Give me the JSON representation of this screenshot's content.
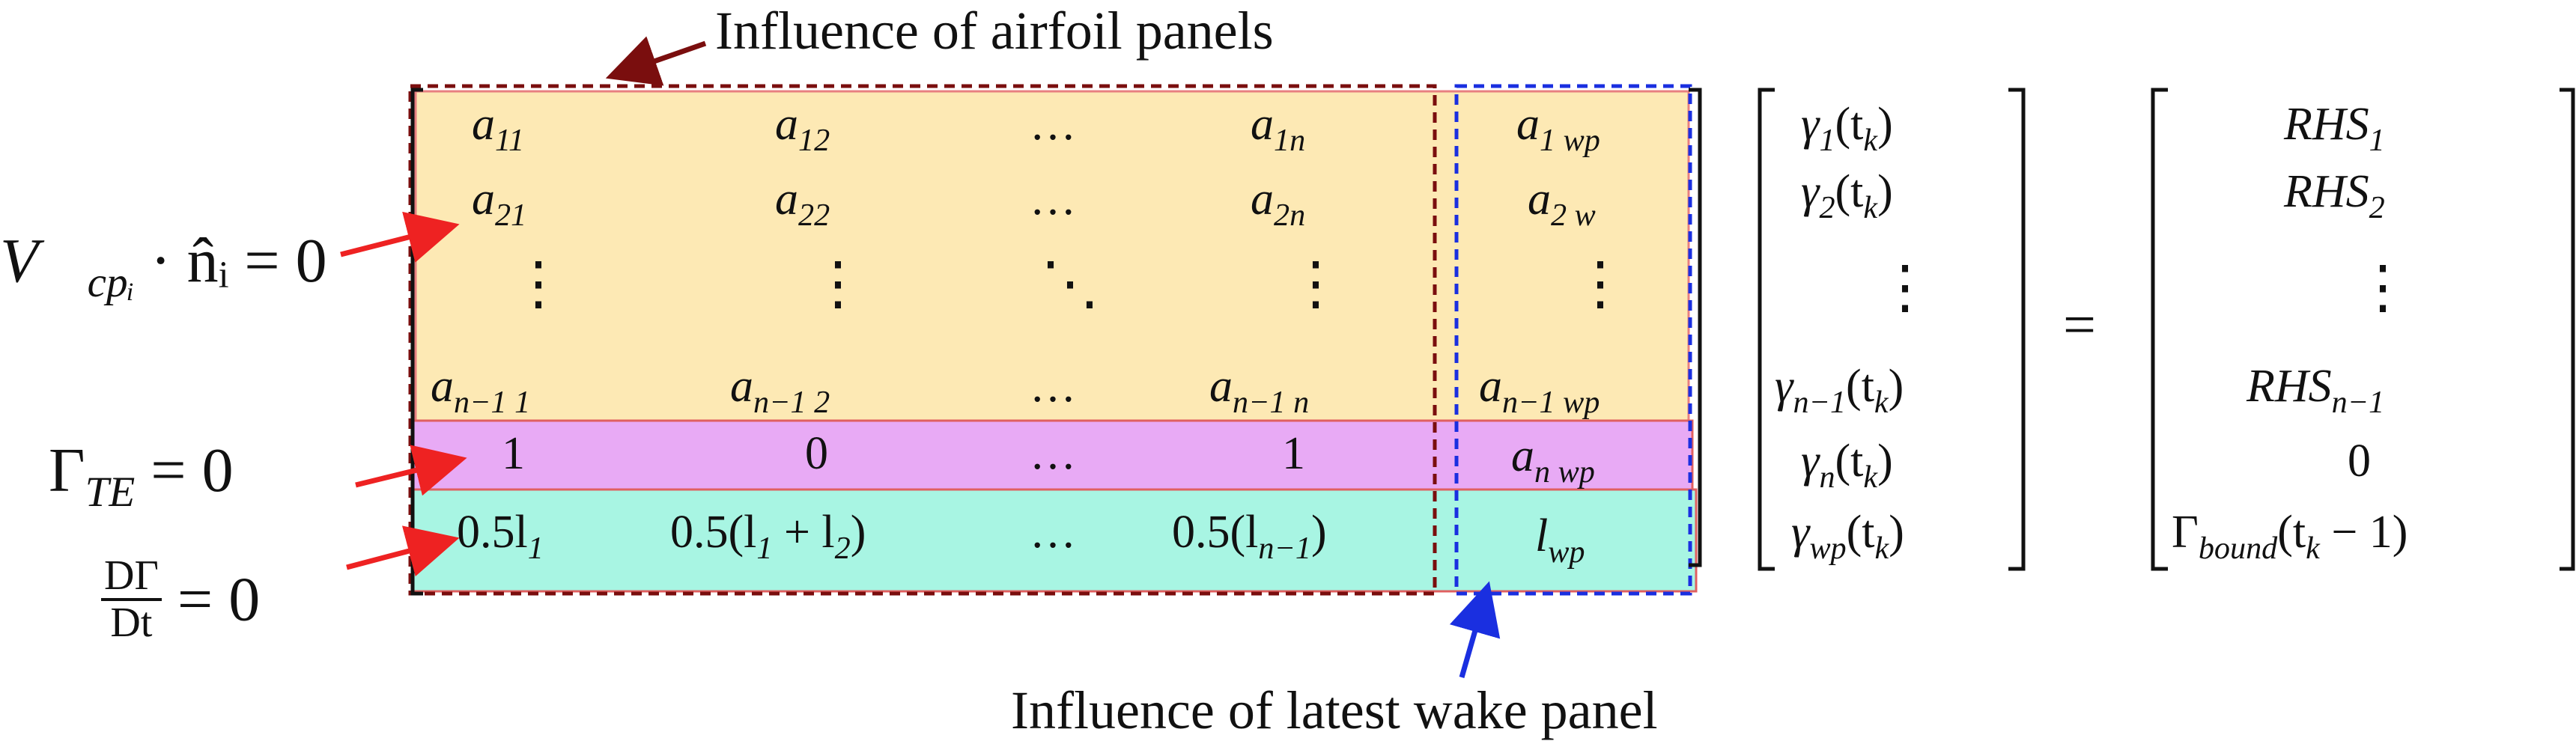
{
  "annotations": {
    "top": "Influence of airfoil panels",
    "bottom": "Influence of latest wake panel"
  },
  "left_equations": {
    "no_penetration": "V⃗",
    "no_penetration_sub": "cpᵢ",
    "no_penetration_rest": " · n̂ᵢ = 0",
    "kutta": "Γ",
    "kutta_sub": "TE",
    "kutta_rest": " = 0",
    "kelvin_num": "DΓ",
    "kelvin_den": "Dt",
    "kelvin_rest": " = 0"
  },
  "matrix": {
    "row1": [
      "a",
      "11",
      "a",
      "12",
      "…",
      "a",
      "1n",
      "a",
      "1 wp"
    ],
    "row2": [
      "a",
      "21",
      "a",
      "22",
      "…",
      "a",
      "2n",
      "a",
      "2 w"
    ],
    "row3": [
      "⋮",
      "⋮",
      "⋱",
      "⋮",
      "⋮"
    ],
    "row4": [
      "a",
      "n−1  1",
      "a",
      "n−1  2",
      "…",
      "a",
      "n−1 n",
      "a",
      "n−1 wp"
    ],
    "row5": [
      "1",
      "0",
      "…",
      "1",
      "a",
      "n wp"
    ],
    "row6": [
      "0.5l",
      "1",
      "0.5(l",
      "1",
      " + l",
      "2",
      ")",
      "…",
      "0.5(l",
      "n−1",
      ")",
      "l",
      "wp"
    ]
  },
  "unknowns": {
    "g1": "γ",
    "g1_sub": "1",
    "g1_arg": "(t",
    "g1_argsub": "k",
    "g1_close": ")",
    "g2": "γ",
    "g2_sub": "2",
    "g2_arg": "(t",
    "g2_argsub": "k",
    "g2_close": ")",
    "gdots": "⋮",
    "gn1": "γ",
    "gn1_sub": "n−1",
    "gn1_arg": "(t",
    "gn1_argsub": "k",
    "gn1_close": ")",
    "gn": "γ",
    "gn_sub": "n",
    "gn_arg": "(t",
    "gn_argsub": "k",
    "gn_close": ")",
    "gwp": "γ",
    "gwp_sub": "wp",
    "gwp_arg": "(t",
    "gwp_argsub": "k",
    "gwp_close": ")"
  },
  "equals": "=",
  "rhs": {
    "r1": "RHS",
    "r1_sub": "1",
    "r2": "RHS",
    "r2_sub": "2",
    "rdots": "⋮",
    "rn1": "RHS",
    "rn1_sub": "n−1",
    "r0": "0",
    "rb": "Γ",
    "rb_sub": "bound",
    "rb_arg": "(t",
    "rb_argsub": "k",
    "rb_close": " − 1)"
  },
  "colors": {
    "airfoil_block": "#fde9b4",
    "kutta_row": "#e8aaf5",
    "kelvin_row": "#a8f5e3",
    "airfoil_border": "#7a0e0e",
    "wake_border": "#1a2fe0",
    "arrow_red": "#ee2222",
    "arrow_dark": "#7a0e0e",
    "arrow_blue": "#1a2fe0"
  }
}
